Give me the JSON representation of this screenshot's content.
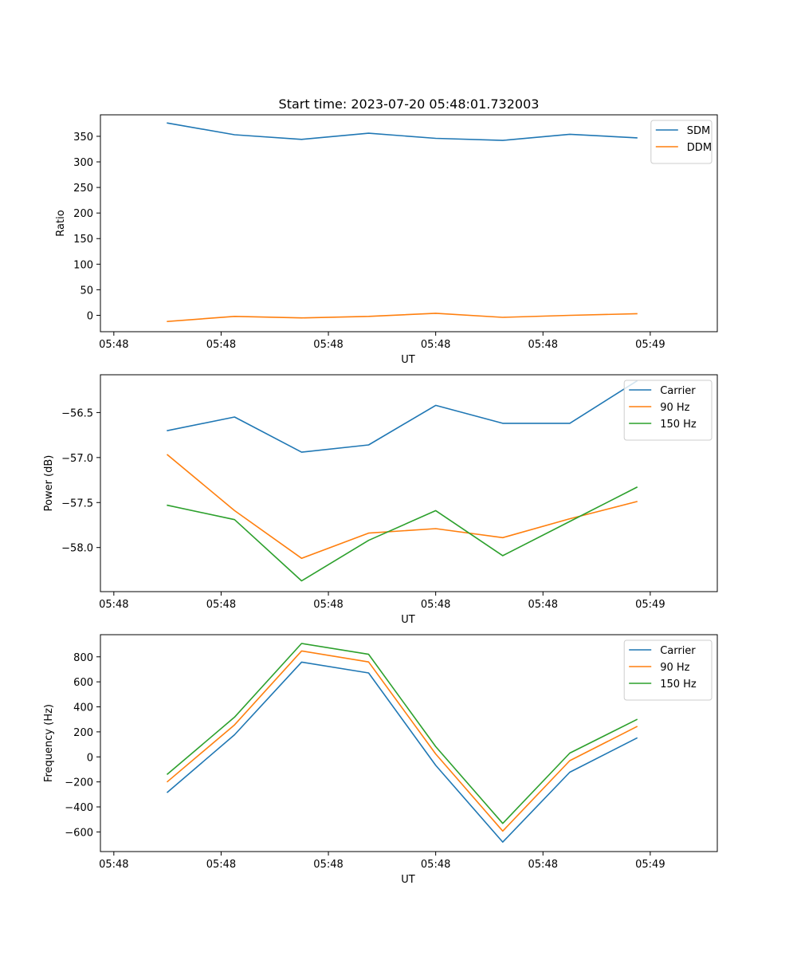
{
  "figure": {
    "title": "Start time: 2023-07-20 05:48:01.732003"
  },
  "colors": {
    "blue": "#1f77b4",
    "orange": "#ff7f0e",
    "green": "#2ca02c"
  },
  "chart_data": [
    {
      "type": "line",
      "title": "Start time: 2023-07-20 05:48:01.732003",
      "xlabel": "UT",
      "ylabel": "Ratio",
      "x": [
        1,
        2,
        3,
        4,
        5,
        6,
        7,
        8
      ],
      "x_tick_positions": [
        0.2,
        1.8,
        3.4,
        5.0,
        6.6,
        8.2
      ],
      "x_tick_labels": [
        "05:48",
        "05:48",
        "05:48",
        "05:48",
        "05:48",
        "05:49"
      ],
      "xlim": [
        0.0,
        9.2
      ],
      "ylim": [
        -32,
        392
      ],
      "yticks": [
        0,
        50,
        100,
        150,
        200,
        250,
        300,
        350
      ],
      "y_tick_labels": [
        "0",
        "50",
        "100",
        "150",
        "200",
        "250",
        "300",
        "350"
      ],
      "grid": false,
      "legend": "top-right",
      "series": [
        {
          "name": "SDM",
          "color": "blue",
          "values": [
            376,
            353,
            344,
            356,
            346,
            342,
            354,
            347
          ]
        },
        {
          "name": "DDM",
          "color": "orange",
          "values": [
            -12,
            -2,
            -5,
            -2,
            4,
            -4,
            0,
            3
          ]
        }
      ]
    },
    {
      "type": "line",
      "xlabel": "UT",
      "ylabel": "Power (dB)",
      "x": [
        1,
        2,
        3,
        4,
        5,
        6,
        7,
        8
      ],
      "x_tick_positions": [
        0.2,
        1.8,
        3.4,
        5.0,
        6.6,
        8.2
      ],
      "x_tick_labels": [
        "05:48",
        "05:48",
        "05:48",
        "05:48",
        "05:48",
        "05:49"
      ],
      "xlim": [
        0.0,
        9.2
      ],
      "ylim": [
        -58.49,
        -56.08
      ],
      "yticks": [
        -58.0,
        -57.5,
        -57.0,
        -56.5
      ],
      "y_tick_labels": [
        "−58.0",
        "−57.5",
        "−57.0",
        "−56.5"
      ],
      "grid": false,
      "legend": "top-right",
      "series": [
        {
          "name": "Carrier",
          "color": "blue",
          "values": [
            -56.7,
            -56.55,
            -56.94,
            -56.86,
            -56.42,
            -56.62,
            -56.62,
            -56.15
          ]
        },
        {
          "name": "90 Hz",
          "color": "orange",
          "values": [
            -56.97,
            -57.59,
            -58.12,
            -57.84,
            -57.79,
            -57.89,
            -57.68,
            -57.49
          ]
        },
        {
          "name": "150 Hz",
          "color": "green",
          "values": [
            -57.53,
            -57.69,
            -58.37,
            -57.92,
            -57.59,
            -58.09,
            -57.71,
            -57.33
          ]
        }
      ]
    },
    {
      "type": "line",
      "xlabel": "UT",
      "ylabel": "Frequency (Hz)",
      "x": [
        1,
        2,
        3,
        4,
        5,
        6,
        7,
        8
      ],
      "x_tick_positions": [
        0.2,
        1.8,
        3.4,
        5.0,
        6.6,
        8.2
      ],
      "x_tick_labels": [
        "05:48",
        "05:48",
        "05:48",
        "05:48",
        "05:48",
        "05:49"
      ],
      "xlim": [
        0.0,
        9.2
      ],
      "ylim": [
        -757,
        977
      ],
      "yticks": [
        -600,
        -400,
        -200,
        0,
        200,
        400,
        600,
        800
      ],
      "y_tick_labels": [
        "−600",
        "−400",
        "−200",
        "0",
        "200",
        "400",
        "600",
        "800"
      ],
      "grid": false,
      "legend": "top-right",
      "series": [
        {
          "name": "Carrier",
          "color": "blue",
          "values": [
            -283,
            177,
            758,
            671,
            -68,
            -681,
            -123,
            150
          ]
        },
        {
          "name": "90 Hz",
          "color": "orange",
          "values": [
            -198,
            256,
            847,
            759,
            23,
            -593,
            -30,
            242
          ]
        },
        {
          "name": "150 Hz",
          "color": "green",
          "values": [
            -138,
            318,
            907,
            820,
            82,
            -532,
            30,
            299
          ]
        }
      ]
    }
  ]
}
